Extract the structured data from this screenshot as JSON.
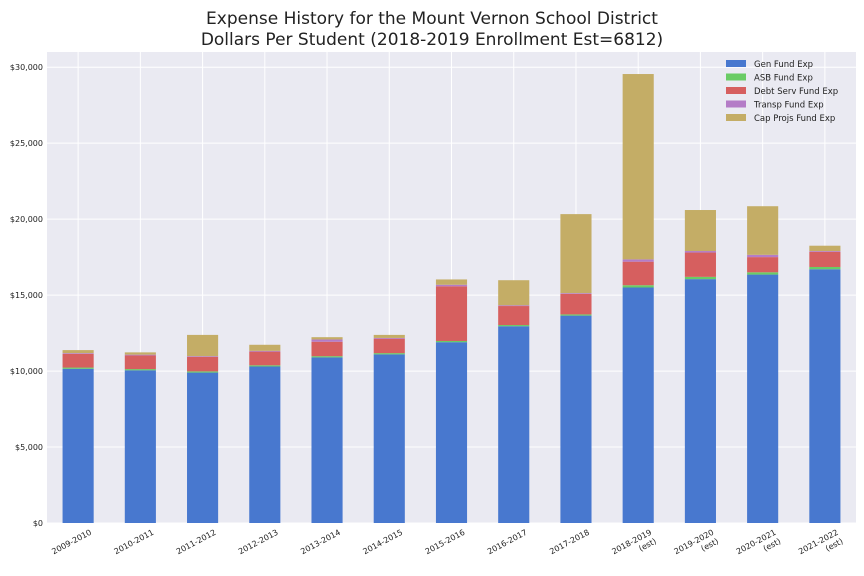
{
  "chart_data": {
    "type": "bar",
    "stacked": true,
    "title": "Expense History for the Mount Vernon School District",
    "subtitle": "Dollars Per Student (2018-2019 Enrollment Est=6812)",
    "xlabel": "",
    "ylabel": "",
    "ylim": [
      0,
      31000
    ],
    "y_ticks": [
      0,
      5000,
      10000,
      15000,
      20000,
      25000,
      30000
    ],
    "y_tick_labels": [
      "$0",
      "$5,000",
      "$10,000",
      "$15,000",
      "$20,000",
      "$25,000",
      "$30,000"
    ],
    "grid": true,
    "legend_position": "top-right",
    "categories": [
      [
        "2009-2010"
      ],
      [
        "2010-2011"
      ],
      [
        "2011-2012"
      ],
      [
        "2012-2013"
      ],
      [
        "2013-2014"
      ],
      [
        "2014-2015"
      ],
      [
        "2015-2016"
      ],
      [
        "2016-2017"
      ],
      [
        "2017-2018"
      ],
      [
        "2018-2019",
        "(est)"
      ],
      [
        "2019-2020",
        "(est)"
      ],
      [
        "2020-2021",
        "(est)"
      ],
      [
        "2021-2022",
        "(est)"
      ]
    ],
    "series": [
      {
        "name": "Gen Fund Exp",
        "color": "#4878cf",
        "values": [
          10150,
          10050,
          9900,
          10300,
          10900,
          11100,
          11900,
          12950,
          13650,
          15500,
          16050,
          16350,
          16700
        ]
      },
      {
        "name": "ASB Fund Exp",
        "color": "#6acc65",
        "values": [
          80,
          80,
          80,
          80,
          80,
          80,
          80,
          80,
          80,
          150,
          150,
          150,
          150
        ]
      },
      {
        "name": "Debt Serv Fund Exp",
        "color": "#d65f5f",
        "values": [
          900,
          900,
          950,
          900,
          950,
          950,
          3600,
          1250,
          1350,
          1550,
          1600,
          1000,
          1000
        ]
      },
      {
        "name": "Transp Fund Exp",
        "color": "#b47cc7",
        "values": [
          50,
          50,
          50,
          50,
          150,
          50,
          100,
          50,
          50,
          150,
          100,
          150,
          50
        ]
      },
      {
        "name": "Cap Projs Fund Exp",
        "color": "#c4ad66",
        "values": [
          200,
          150,
          1400,
          400,
          150,
          200,
          350,
          1650,
          5200,
          12200,
          2700,
          3200,
          350
        ]
      }
    ]
  }
}
